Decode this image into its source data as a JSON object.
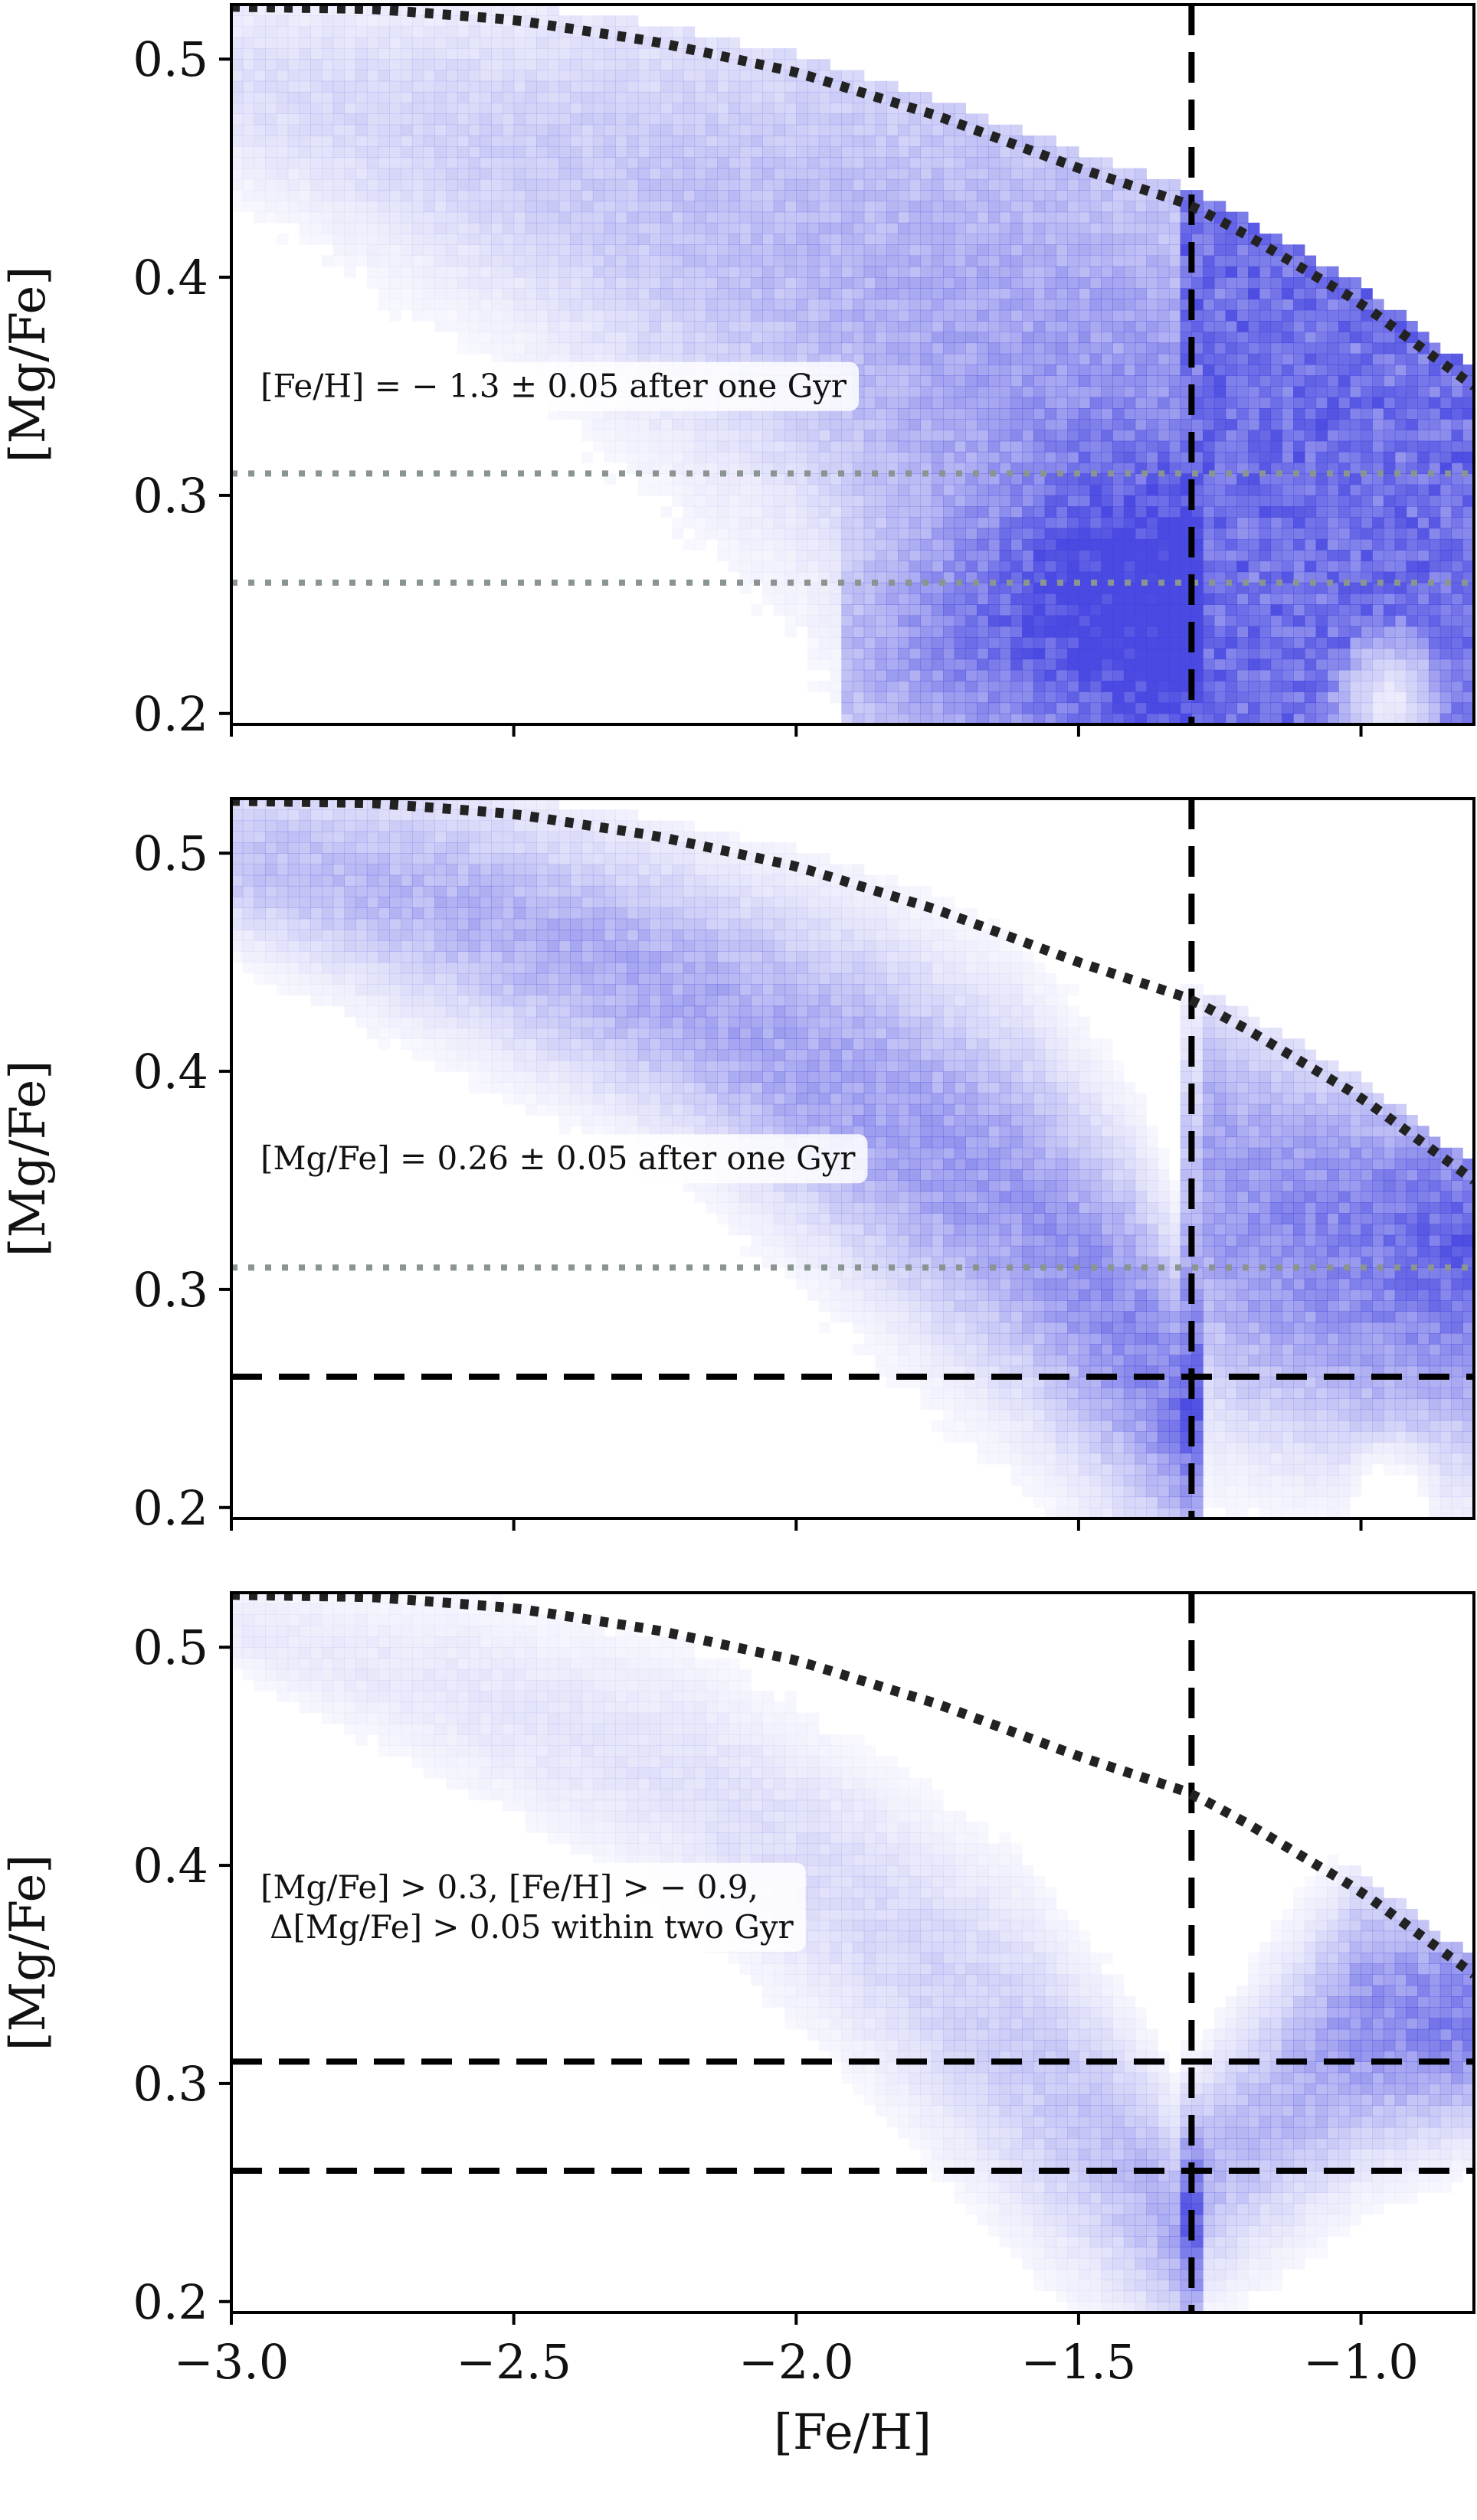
{
  "colors": {
    "density": "#4040e0",
    "frame": "#000000",
    "dotted_curve": "#222222",
    "gray_dotted": "#8a9490",
    "dashed": "#000000",
    "annotation_bg": "#ffffff"
  },
  "chart_data": [
    {
      "type": "heatmap",
      "title": "",
      "xlabel": "",
      "ylabel": "[Mg/Fe]",
      "xlim": [
        -3.0,
        -0.8
      ],
      "ylim": [
        0.195,
        0.525
      ],
      "x_ticks": [
        "−3.0",
        "−2.5",
        "−2.0",
        "−1.5",
        "−1.0"
      ],
      "x_tick_values": [
        -3.0,
        -2.5,
        -2.0,
        -1.5,
        -1.0
      ],
      "show_x_tick_labels": false,
      "y_ticks": [
        "0.2",
        "0.3",
        "0.4",
        "0.5"
      ],
      "y_tick_values": [
        0.2,
        0.3,
        0.4,
        0.5
      ],
      "annotation": [
        "[Fe/H] = − 1.3 ± 0.05 after one Gyr"
      ],
      "annotation_anchor": {
        "x": -2.97,
        "y": 0.345
      },
      "vline_dashed": [
        -1.3
      ],
      "hlines_dashed": [],
      "hlines_gray_dotted": [
        0.31,
        0.26
      ],
      "envelope_curve": {
        "x": [
          -3.0,
          -2.75,
          -2.5,
          -2.25,
          -2.0,
          -1.75,
          -1.5,
          -1.3,
          -1.2,
          -1.0,
          -0.8
        ],
        "y": [
          0.524,
          0.523,
          0.518,
          0.508,
          0.494,
          0.474,
          0.45,
          0.433,
          0.419,
          0.388,
          0.35
        ]
      },
      "density_model": {
        "background": 0.02,
        "bands": [
          {
            "x": [
              -3.0,
              -2.5,
              -2.0,
              -1.8,
              -1.6,
              -1.4,
              -1.3
            ],
            "y_center": [
              0.49,
              0.455,
              0.41,
              0.375,
              0.34,
              0.3,
              0.28
            ],
            "half_width": [
              0.03,
              0.05,
              0.08,
              0.1,
              0.12,
              0.12,
              0.12
            ],
            "amp": [
              0.18,
              0.28,
              0.4,
              0.48,
              0.56,
              0.65,
              0.7
            ]
          },
          {
            "x": [
              -1.9,
              -1.7,
              -1.5,
              -1.3
            ],
            "y_center": [
              0.22,
              0.23,
              0.24,
              0.24
            ],
            "half_width": [
              0.035,
              0.04,
              0.05,
              0.05
            ],
            "amp": [
              0.35,
              0.5,
              0.65,
              0.7
            ]
          }
        ],
        "right_block": {
          "x_start": -1.32,
          "amp": 0.95
        },
        "holes": [
          {
            "x": -0.95,
            "y": 0.205,
            "rx": 0.12,
            "ry": 0.04
          }
        ]
      }
    },
    {
      "type": "heatmap",
      "title": "",
      "xlabel": "",
      "ylabel": "[Mg/Fe]",
      "xlim": [
        -3.0,
        -0.8
      ],
      "ylim": [
        0.195,
        0.525
      ],
      "x_ticks": [
        "−3.0",
        "−2.5",
        "−2.0",
        "−1.5",
        "−1.0"
      ],
      "x_tick_values": [
        -3.0,
        -2.5,
        -2.0,
        -1.5,
        -1.0
      ],
      "show_x_tick_labels": false,
      "y_ticks": [
        "0.2",
        "0.3",
        "0.4",
        "0.5"
      ],
      "y_tick_values": [
        0.2,
        0.3,
        0.4,
        0.5
      ],
      "annotation": [
        "[Mg/Fe] = 0.26 ± 0.05 after one Gyr"
      ],
      "annotation_anchor": {
        "x": -2.97,
        "y": 0.355
      },
      "vline_dashed": [
        -1.3
      ],
      "hlines_dashed": [
        0.26
      ],
      "hlines_gray_dotted": [
        0.31
      ],
      "envelope_curve": {
        "x": [
          -3.0,
          -2.75,
          -2.5,
          -2.25,
          -2.0,
          -1.75,
          -1.5,
          -1.3,
          -1.2,
          -1.0,
          -0.8
        ],
        "y": [
          0.524,
          0.523,
          0.518,
          0.508,
          0.494,
          0.474,
          0.45,
          0.433,
          0.419,
          0.388,
          0.35
        ]
      },
      "density_model": {
        "background": 0.01,
        "bands": [
          {
            "x": [
              -3.0,
              -2.6,
              -2.2,
              -1.9,
              -1.6,
              -1.4,
              -1.3
            ],
            "y_center": [
              0.5,
              0.475,
              0.435,
              0.39,
              0.335,
              0.275,
              0.235
            ],
            "half_width": [
              0.025,
              0.035,
              0.04,
              0.05,
              0.055,
              0.05,
              0.04
            ],
            "amp": [
              0.35,
              0.45,
              0.5,
              0.55,
              0.6,
              0.7,
              0.8
            ]
          },
          {
            "x": [
              -1.3,
              -1.2,
              -1.0,
              -0.8
            ],
            "y_center": [
              0.33,
              0.31,
              0.3,
              0.3
            ],
            "half_width": [
              0.06,
              0.05,
              0.05,
              0.05
            ],
            "amp": [
              0.4,
              0.55,
              0.65,
              0.75
            ]
          },
          {
            "x": [
              -1.25,
              -1.0,
              -0.8
            ],
            "y_center": [
              0.38,
              0.355,
              0.34
            ],
            "half_width": [
              0.04,
              0.03,
              0.03
            ],
            "amp": [
              0.25,
              0.3,
              0.35
            ]
          }
        ],
        "right_block": null,
        "holes": [
          {
            "x": -0.95,
            "y": 0.205,
            "rx": 0.1,
            "ry": 0.035
          }
        ]
      }
    },
    {
      "type": "heatmap",
      "title": "",
      "xlabel": "[Fe/H]",
      "ylabel": "[Mg/Fe]",
      "xlim": [
        -3.0,
        -0.8
      ],
      "ylim": [
        0.195,
        0.525
      ],
      "x_ticks": [
        "−3.0",
        "−2.5",
        "−2.0",
        "−1.5",
        "−1.0"
      ],
      "x_tick_values": [
        -3.0,
        -2.5,
        -2.0,
        -1.5,
        -1.0
      ],
      "show_x_tick_labels": true,
      "y_ticks": [
        "0.2",
        "0.3",
        "0.4",
        "0.5"
      ],
      "y_tick_values": [
        0.2,
        0.3,
        0.4,
        0.5
      ],
      "annotation": [
        "[Mg/Fe] > 0.3, [Fe/H] > − 0.9,",
        "Δ[Mg/Fe] > 0.05 within two Gyr"
      ],
      "annotation_anchor": {
        "x": -2.97,
        "y": 0.385
      },
      "vline_dashed": [
        -1.3
      ],
      "hlines_dashed": [
        0.31,
        0.26
      ],
      "hlines_gray_dotted": [],
      "envelope_curve": {
        "x": [
          -3.0,
          -2.75,
          -2.5,
          -2.25,
          -2.0,
          -1.75,
          -1.5,
          -1.3,
          -1.2,
          -1.0,
          -0.8
        ],
        "y": [
          0.524,
          0.523,
          0.518,
          0.508,
          0.494,
          0.474,
          0.45,
          0.433,
          0.419,
          0.388,
          0.35
        ]
      },
      "density_model": {
        "background": 0.0,
        "bands": [
          {
            "x": [
              -3.0,
              -2.6,
              -2.2,
              -1.9,
              -1.6,
              -1.4,
              -1.3
            ],
            "y_center": [
              0.51,
              0.48,
              0.44,
              0.38,
              0.31,
              0.255,
              0.225
            ],
            "half_width": [
              0.015,
              0.03,
              0.04,
              0.045,
              0.05,
              0.04,
              0.03
            ],
            "amp": [
              0.12,
              0.14,
              0.17,
              0.22,
              0.3,
              0.4,
              0.55
            ]
          },
          {
            "x": [
              -1.3,
              -1.15,
              -1.0,
              -0.8
            ],
            "y_center": [
              0.25,
              0.29,
              0.33,
              0.33
            ],
            "half_width": [
              0.03,
              0.04,
              0.04,
              0.03
            ],
            "amp": [
              0.45,
              0.4,
              0.65,
              0.8
            ]
          }
        ],
        "right_block": null,
        "holes": []
      }
    }
  ]
}
